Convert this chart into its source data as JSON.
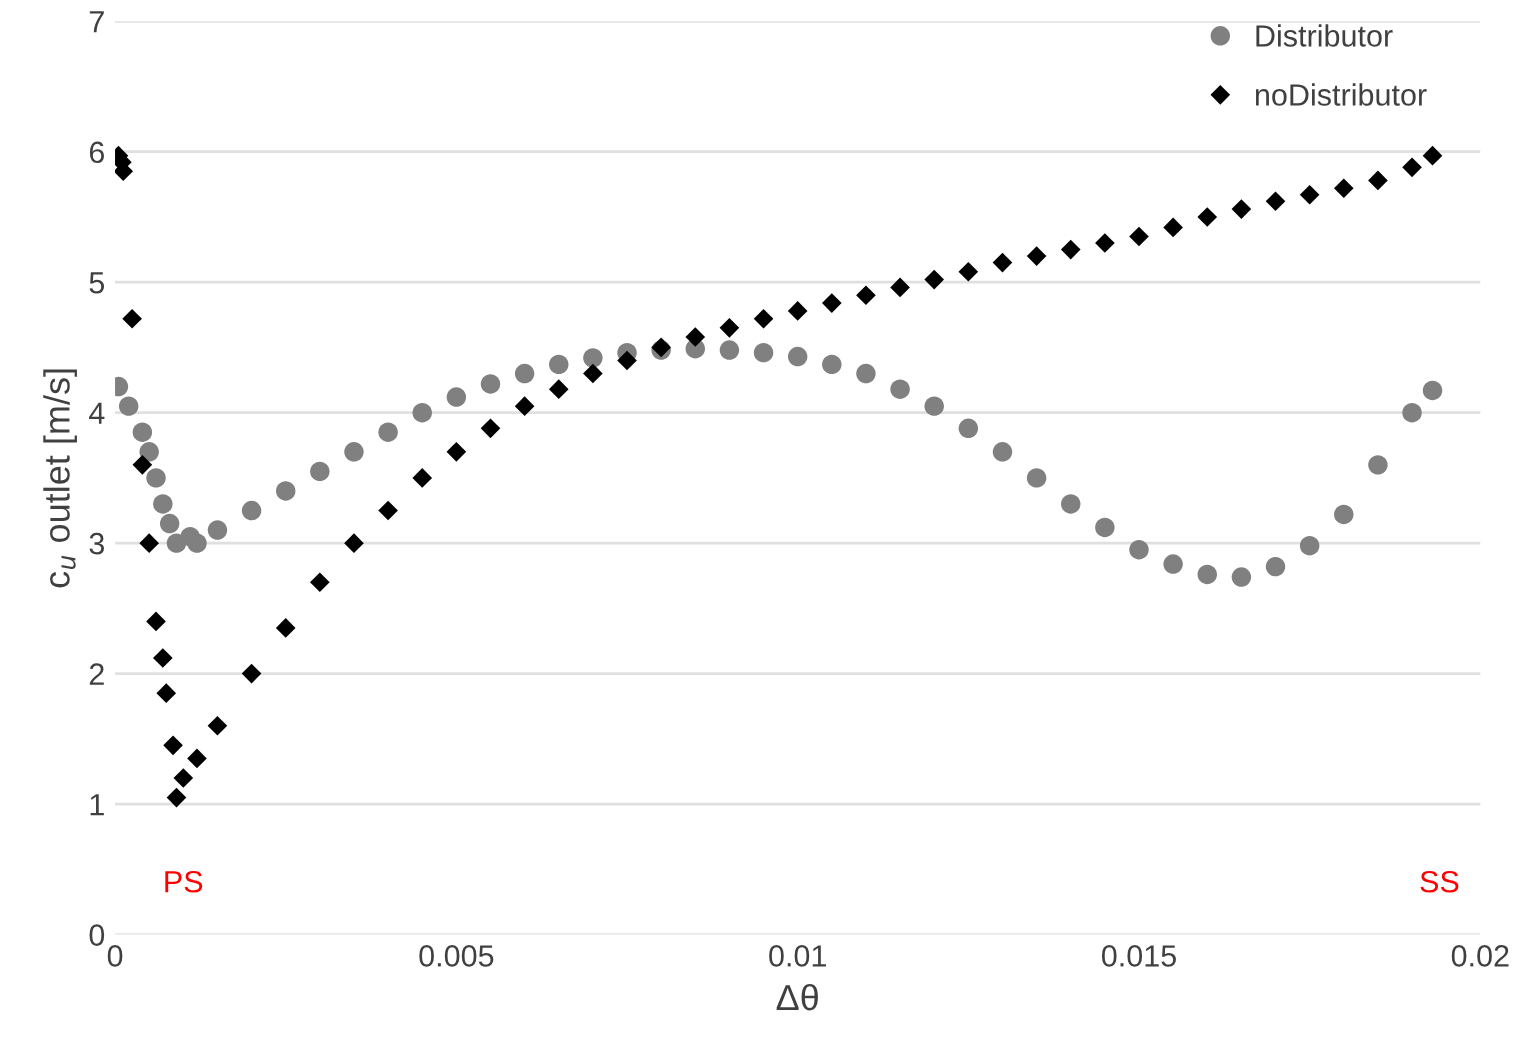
{
  "chart_data": {
    "type": "scatter",
    "xlabel": "Δθ",
    "ylabel": "c$_{u}$ outlet [m/s]",
    "xlim": [
      0,
      0.02
    ],
    "ylim": [
      0,
      7
    ],
    "xticks": [
      0,
      0.005,
      0.01,
      0.015,
      0.02
    ],
    "yticks": [
      0,
      1,
      2,
      3,
      4,
      5,
      6,
      7
    ],
    "grid": "y",
    "legend": "top right",
    "series": [
      {
        "name": "Distributor",
        "color": "#808080",
        "marker": "circle",
        "x": [
          5e-05,
          0.0002,
          0.0004,
          0.0005,
          0.0006,
          0.0007,
          0.0008,
          0.0009,
          0.0011,
          0.0012,
          0.0015,
          0.002,
          0.0025,
          0.003,
          0.0035,
          0.004,
          0.0045,
          0.005,
          0.0055,
          0.006,
          0.0065,
          0.007,
          0.0075,
          0.008,
          0.0085,
          0.009,
          0.0095,
          0.01,
          0.0105,
          0.011,
          0.0115,
          0.012,
          0.0125,
          0.013,
          0.0135,
          0.014,
          0.0145,
          0.015,
          0.0155,
          0.016,
          0.0165,
          0.017,
          0.0175,
          0.018,
          0.0185,
          0.019,
          0.0193
        ],
        "values": [
          4.2,
          4.05,
          3.85,
          3.7,
          3.5,
          3.3,
          3.15,
          3.0,
          3.05,
          3.0,
          3.1,
          3.25,
          3.4,
          3.55,
          3.7,
          3.85,
          4.0,
          4.12,
          4.22,
          4.3,
          4.37,
          4.42,
          4.46,
          4.48,
          4.49,
          4.48,
          4.46,
          4.43,
          4.37,
          4.3,
          4.18,
          4.05,
          3.88,
          3.7,
          3.5,
          3.3,
          3.12,
          2.95,
          2.84,
          2.76,
          2.74,
          2.82,
          2.98,
          3.22,
          3.6,
          4.0,
          4.17
        ]
      },
      {
        "name": "noDistributor",
        "color": "#000000",
        "marker": "diamond",
        "x": [
          5e-05,
          0.0001,
          0.00012,
          0.00025,
          0.0004,
          0.0005,
          0.0006,
          0.0007,
          0.00075,
          0.00085,
          0.0009,
          0.001,
          0.0012,
          0.0015,
          0.002,
          0.0025,
          0.003,
          0.0035,
          0.004,
          0.0045,
          0.005,
          0.0055,
          0.006,
          0.0065,
          0.007,
          0.0075,
          0.008,
          0.0085,
          0.009,
          0.0095,
          0.01,
          0.0105,
          0.011,
          0.0115,
          0.012,
          0.0125,
          0.013,
          0.0135,
          0.014,
          0.0145,
          0.015,
          0.0155,
          0.016,
          0.0165,
          0.017,
          0.0175,
          0.018,
          0.0185,
          0.019,
          0.0193
        ],
        "values": [
          5.97,
          5.92,
          5.85,
          4.72,
          3.6,
          3.0,
          2.4,
          2.12,
          1.85,
          1.45,
          1.05,
          1.2,
          1.35,
          1.6,
          2.0,
          2.35,
          2.7,
          3.0,
          3.25,
          3.5,
          3.7,
          3.88,
          4.05,
          4.18,
          4.3,
          4.4,
          4.5,
          4.58,
          4.65,
          4.72,
          4.78,
          4.84,
          4.9,
          4.96,
          5.02,
          5.08,
          5.15,
          5.2,
          5.25,
          5.3,
          5.35,
          5.42,
          5.5,
          5.56,
          5.62,
          5.67,
          5.72,
          5.78,
          5.88,
          5.97
        ]
      }
    ],
    "annotations": [
      "PS",
      "SS"
    ]
  }
}
